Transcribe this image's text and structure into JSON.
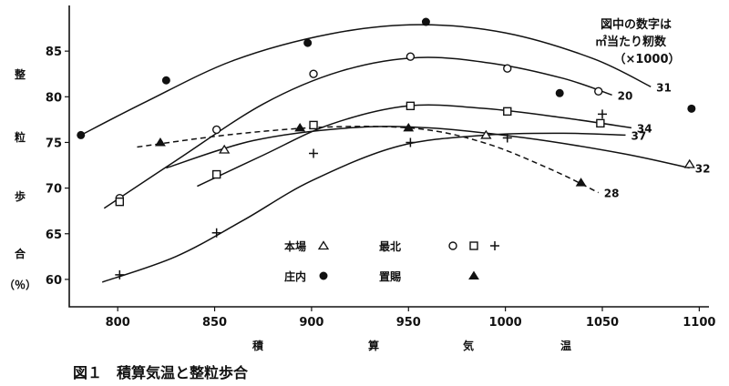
{
  "chart_data": {
    "type": "scatter",
    "caption": "図１　積算気温と整粒歩合",
    "xlabel": [
      "積",
      "算",
      "気",
      "温"
    ],
    "ylabel": [
      "整",
      "粒",
      "歩",
      "合",
      "（％）"
    ],
    "xlim": [
      775,
      1105
    ],
    "ylim": [
      57,
      90
    ],
    "xticks": [
      800,
      850,
      900,
      950,
      1000,
      1050,
      1100
    ],
    "yticks": [
      60,
      65,
      70,
      75,
      80,
      85
    ],
    "note": [
      "図中の数字は",
      "㎡当たり籾数",
      "（×1000）"
    ],
    "series": [
      {
        "name": "本場",
        "marker": "triangle-open",
        "points": [
          [
            855,
            74.2
          ],
          [
            990,
            75.8
          ],
          [
            1095,
            72.6
          ]
        ],
        "curves": [
          {
            "label": "32",
            "dashed": false,
            "points": [
              [
                825,
                72.2
              ],
              [
                870,
                75.2
              ],
              [
                920,
                76.6
              ],
              [
                960,
                76.6
              ],
              [
                1010,
                75.5
              ],
              [
                1060,
                73.8
              ],
              [
                1095,
                72.2
              ]
            ]
          }
        ]
      },
      {
        "name": "最北",
        "marker": "circle-open",
        "points": [
          [
            801,
            68.9
          ],
          [
            851,
            76.4
          ],
          [
            901,
            82.5
          ],
          [
            951,
            84.4
          ],
          [
            1001,
            83.1
          ],
          [
            1048,
            80.6
          ]
        ],
        "curves": [
          {
            "label": "20",
            "dashed": false,
            "points": [
              [
                793,
                67.8
              ],
              [
                830,
                73.0
              ],
              [
                875,
                79.2
              ],
              [
                915,
                82.8
              ],
              [
                955,
                84.3
              ],
              [
                995,
                83.6
              ],
              [
                1030,
                82.0
              ],
              [
                1055,
                80.2
              ]
            ]
          }
        ]
      },
      {
        "name": "最北",
        "marker": "square-open",
        "points": [
          [
            801,
            68.5
          ],
          [
            851,
            71.5
          ],
          [
            901,
            76.9
          ],
          [
            951,
            79.0
          ],
          [
            1001,
            78.4
          ],
          [
            1049,
            77.1
          ]
        ],
        "curves": [
          {
            "label": "34",
            "dashed": false,
            "points": [
              [
                841,
                70.2
              ],
              [
                875,
                73.6
              ],
              [
                910,
                77.0
              ],
              [
                950,
                79.0
              ],
              [
                990,
                78.7
              ],
              [
                1030,
                77.7
              ],
              [
                1065,
                76.6
              ]
            ]
          }
        ]
      },
      {
        "name": "最北",
        "marker": "plus",
        "points": [
          [
            801,
            60.5
          ],
          [
            851,
            65.1
          ],
          [
            901,
            73.8
          ],
          [
            951,
            75.0
          ],
          [
            1001,
            75.5
          ],
          [
            1050,
            78.1
          ]
        ],
        "curves": [
          {
            "label": "37",
            "dashed": false,
            "points": [
              [
                792,
                59.7
              ],
              [
                830,
                62.5
              ],
              [
                865,
                66.5
              ],
              [
                900,
                70.8
              ],
              [
                945,
                74.6
              ],
              [
                990,
                75.8
              ],
              [
                1030,
                76.0
              ],
              [
                1062,
                75.8
              ]
            ]
          }
        ]
      },
      {
        "name": "庄内",
        "marker": "circle-filled",
        "points": [
          [
            781,
            75.8
          ],
          [
            825,
            81.8
          ],
          [
            898,
            85.9
          ],
          [
            959,
            88.2
          ],
          [
            1028,
            80.4
          ],
          [
            1096,
            78.7
          ]
        ],
        "curves": [
          {
            "label": "31",
            "dashed": false,
            "points": [
              [
                781,
                75.8
              ],
              [
                815,
                79.5
              ],
              [
                860,
                84.0
              ],
              [
                910,
                86.9
              ],
              [
                955,
                87.9
              ],
              [
                1000,
                87.0
              ],
              [
                1045,
                84.2
              ],
              [
                1075,
                81.1
              ]
            ]
          }
        ]
      },
      {
        "name": "置賜",
        "marker": "triangle-filled",
        "points": [
          [
            822,
            75.0
          ],
          [
            894,
            76.6
          ],
          [
            950,
            76.6
          ],
          [
            1039,
            70.6
          ]
        ],
        "curves": [
          {
            "label": "28",
            "dashed": true,
            "points": [
              [
                810,
                74.5
              ],
              [
                860,
                75.9
              ],
              [
                910,
                76.7
              ],
              [
                955,
                76.5
              ],
              [
                990,
                74.9
              ],
              [
                1025,
                71.9
              ],
              [
                1048,
                69.5
              ]
            ]
          }
        ]
      }
    ],
    "legend": [
      {
        "name": "本場",
        "markers": [
          "triangle-open"
        ]
      },
      {
        "name": "最北",
        "markers": [
          "circle-open",
          "square-open",
          "plus"
        ]
      },
      {
        "name": "庄内",
        "markers": [
          "circle-filled"
        ]
      },
      {
        "name": "置賜",
        "markers": [
          "triangle-filled"
        ]
      }
    ]
  }
}
